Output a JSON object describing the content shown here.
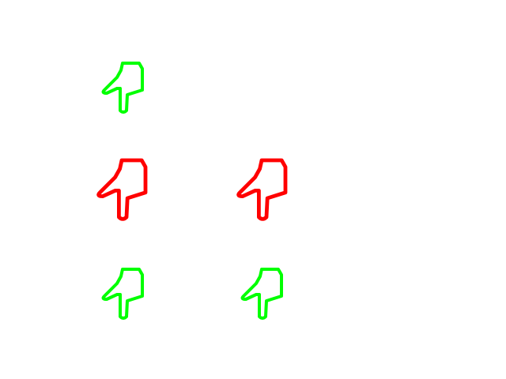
{
  "canvas": {
    "background": "#ffffff"
  },
  "icons": [
    {
      "name": "hand-icon-row1-col1",
      "icon": "pointing-hand-outline",
      "color": "#00ff00",
      "size": "small"
    },
    {
      "name": "hand-icon-row2-col1",
      "icon": "pointing-hand-outline",
      "color": "#ff0000",
      "size": "large"
    },
    {
      "name": "hand-icon-row2-col2",
      "icon": "pointing-hand-outline",
      "color": "#ff0000",
      "size": "large"
    },
    {
      "name": "hand-icon-row3-col1",
      "icon": "pointing-hand-outline",
      "color": "#00ff00",
      "size": "small"
    },
    {
      "name": "hand-icon-row3-col2",
      "icon": "pointing-hand-outline",
      "color": "#00ff00",
      "size": "small"
    }
  ]
}
